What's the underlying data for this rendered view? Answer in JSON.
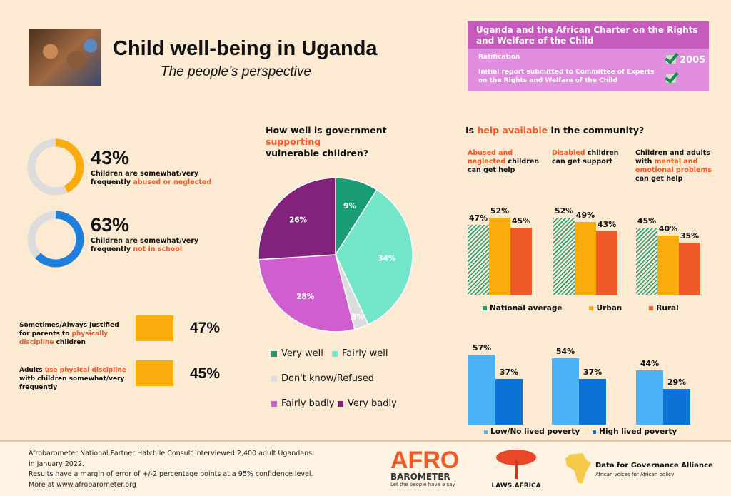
{
  "header": {
    "title": "Child well-being in Uganda",
    "subtitle": "The people’s perspective"
  },
  "charter": {
    "title": "Uganda and the African Charter on the Rights and Welfare of the Child",
    "ratification_label": "Ratification",
    "ratification_year": "2005",
    "report_label_1": "Initial report submitted to Committee of Experts",
    "report_label_2": "on the Rights and Welfare of the Child"
  },
  "stats": [
    {
      "value": "43%",
      "fraction": 0.43,
      "color": "#fbab0c",
      "text": "Children are somewhat/very frequently ",
      "highlight": "abused or neglected"
    },
    {
      "value": "63%",
      "fraction": 0.63,
      "color": "#1f7fdc",
      "text": "Children are somewhat/very frequently ",
      "highlight": "not in school"
    }
  ],
  "discipline": [
    {
      "pre": "Sometimes/Always justified for parents to ",
      "highlight": "physically discipline",
      "post": " children",
      "value": "47%"
    },
    {
      "pre": "Adults ",
      "highlight": "use physical discipline",
      "post": " with children somewhat/very frequently",
      "value": "45%"
    }
  ],
  "colors": {
    "orange": "#fbab0c",
    "rural": "#f05a28",
    "teal": "#1a9c74",
    "low": "#4cb3f7",
    "high": "#0d72d6"
  },
  "chart_data": [
    {
      "type": "pie",
      "title_pre": "How well is government ",
      "title_hl": "supporting",
      "title_post": "vulnerable children?",
      "slices": [
        {
          "label": "Very well",
          "value": 9,
          "color": "#1a9c74"
        },
        {
          "label": "Fairly well",
          "value": 34,
          "color": "#73e6c9"
        },
        {
          "label": "Don't know/Refused",
          "value": 3,
          "color": "#dcdcdc"
        },
        {
          "label": "Fairly badly",
          "value": 28,
          "color": "#cf5fcf"
        },
        {
          "label": "Very badly",
          "value": 26,
          "color": "#82227a"
        }
      ]
    },
    {
      "type": "bar",
      "title_pre": "Is ",
      "title_hl": "help available",
      "title_post": " in the community?",
      "categories": [
        {
          "hl": "Abused and neglected",
          "rest": " children can get help"
        },
        {
          "hl": "Disabled",
          "rest": " children can get support"
        },
        {
          "pre": "Children and adults with ",
          "hl": "mental and emotional problems",
          "rest": " can get help"
        }
      ],
      "series": [
        {
          "name": "National average",
          "values": [
            47,
            52,
            45
          ]
        },
        {
          "name": "Urban",
          "values": [
            52,
            49,
            40
          ]
        },
        {
          "name": "Rural",
          "values": [
            45,
            43,
            35
          ]
        }
      ],
      "ylim": [
        0,
        60
      ]
    },
    {
      "type": "bar",
      "categories": [
        "Abused and neglected children can get help",
        "Disabled children can get support",
        "Mental and emotional problems help"
      ],
      "series": [
        {
          "name": "Low/No lived poverty",
          "values": [
            57,
            54,
            44
          ]
        },
        {
          "name": "High lived poverty",
          "values": [
            37,
            37,
            29
          ]
        }
      ],
      "ylim": [
        0,
        60
      ]
    }
  ],
  "footer": {
    "line1": "Afrobarometer National Partner Hatchile Consult interviewed 2,400 adult Ugandans",
    "line2": "in January 2022.",
    "line3": "Results have a margin of error of +/-2 percentage points at a 95% confidence level.",
    "line4": "More at www.afrobarometer.org",
    "logo_afro_1": "AFRO",
    "logo_afro_2": "BAROMETER",
    "logo_afro_tag": "Let the people have a say",
    "logo_laws": "LAWS.AFRICA",
    "logo_d4g": "Data for Governance Alliance",
    "logo_d4g_tag": "African voices for African policy"
  }
}
